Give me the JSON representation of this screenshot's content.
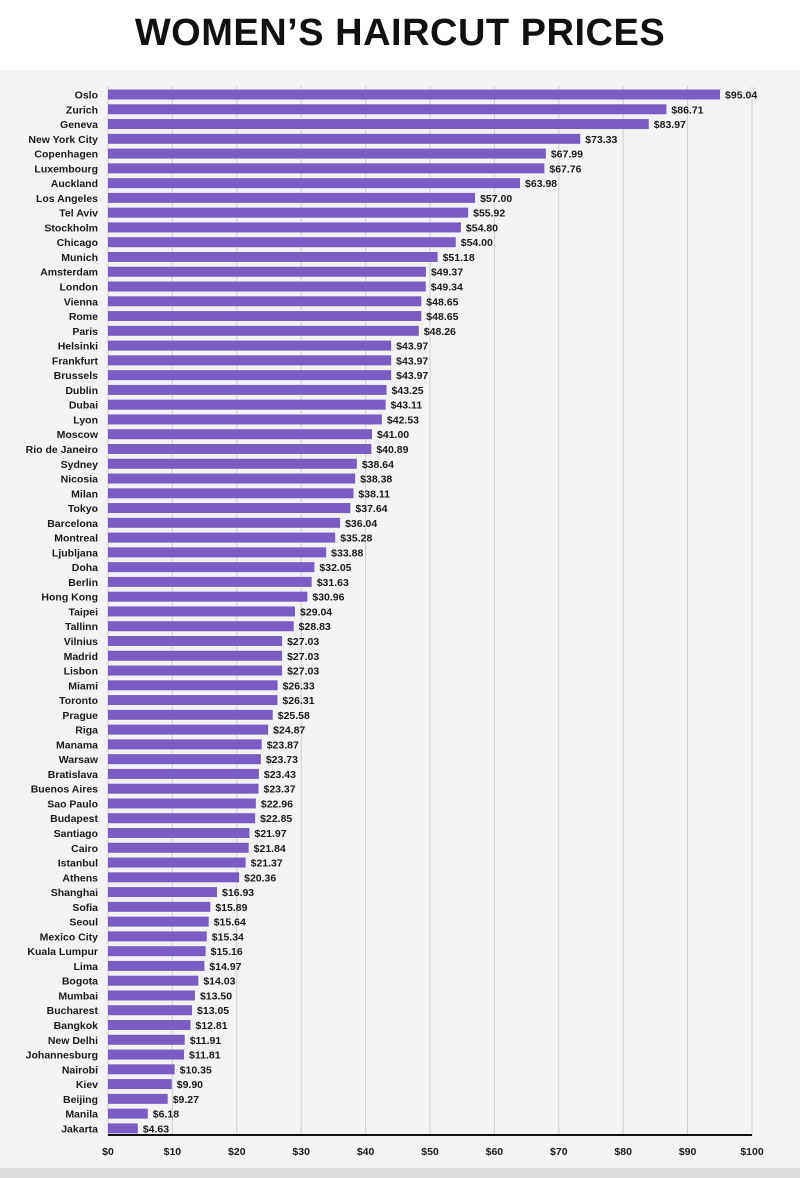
{
  "title": "WOMEN’S HAIRCUT PRICES",
  "chart_data": {
    "type": "bar",
    "orientation": "horizontal",
    "title": "WOMEN’S HAIRCUT PRICES",
    "xlabel": "",
    "ylabel": "",
    "xlim": [
      0,
      100
    ],
    "x_ticks": [
      "$0",
      "$10",
      "$20",
      "$30",
      "$40",
      "$50",
      "$60",
      "$70",
      "$80",
      "$90",
      "$100"
    ],
    "grid": "vertical",
    "bar_color": "#7b5cc4",
    "value_prefix": "$",
    "categories": [
      "Oslo",
      "Zurich",
      "Geneva",
      "New York City",
      "Copenhagen",
      "Luxembourg",
      "Auckland",
      "Los Angeles",
      "Tel Aviv",
      "Stockholm",
      "Chicago",
      "Munich",
      "Amsterdam",
      "London",
      "Vienna",
      "Rome",
      "Paris",
      "Helsinki",
      "Frankfurt",
      "Brussels",
      "Dublin",
      "Dubai",
      "Lyon",
      "Moscow",
      "Rio de Janeiro",
      "Sydney",
      "Nicosia",
      "Milan",
      "Tokyo",
      "Barcelona",
      "Montreal",
      "Ljubljana",
      "Doha",
      "Berlin",
      "Hong Kong",
      "Taipei",
      "Tallinn",
      "Vilnius",
      "Madrid",
      "Lisbon",
      "Miami",
      "Toronto",
      "Prague",
      "Riga",
      "Manama",
      "Warsaw",
      "Bratislava",
      "Buenos Aires",
      "Sao Paulo",
      "Budapest",
      "Santiago",
      "Cairo",
      "Istanbul",
      "Athens",
      "Shanghai",
      "Sofia",
      "Seoul",
      "Mexico City",
      "Kuala Lumpur",
      "Lima",
      "Bogota",
      "Mumbai",
      "Bucharest",
      "Bangkok",
      "New Delhi",
      "Johannesburg",
      "Nairobi",
      "Kiev",
      "Beijing",
      "Manila",
      "Jakarta"
    ],
    "values": [
      95.04,
      86.71,
      83.97,
      73.33,
      67.99,
      67.76,
      63.98,
      57.0,
      55.92,
      54.8,
      54.0,
      51.18,
      49.37,
      49.34,
      48.65,
      48.65,
      48.26,
      43.97,
      43.97,
      43.97,
      43.25,
      43.11,
      42.53,
      41.0,
      40.89,
      38.64,
      38.38,
      38.11,
      37.64,
      36.04,
      35.28,
      33.88,
      32.05,
      31.63,
      30.96,
      29.04,
      28.83,
      27.03,
      27.03,
      27.03,
      26.33,
      26.31,
      25.58,
      24.87,
      23.87,
      23.73,
      23.43,
      23.37,
      22.96,
      22.85,
      21.97,
      21.84,
      21.37,
      20.36,
      16.93,
      15.89,
      15.64,
      15.34,
      15.16,
      14.97,
      14.03,
      13.5,
      13.05,
      12.81,
      11.91,
      11.81,
      10.35,
      9.9,
      9.27,
      6.18,
      4.63
    ],
    "value_labels": [
      "$95.04",
      "$86.71",
      "$83.97",
      "$73.33",
      "$67.99",
      "$67.76",
      "$63.98",
      "$57.00",
      "$55.92",
      "$54.80",
      "$54.00",
      "$51.18",
      "$49.37",
      "$49.34",
      "$48.65",
      "$48.65",
      "$48.26",
      "$43.97",
      "$43.97",
      "$43.97",
      "$43.25",
      "$43.11",
      "$42.53",
      "$41.00",
      "$40.89",
      "$38.64",
      "$38.38",
      "$38.11",
      "$37.64",
      "$36.04",
      "$35.28",
      "$33.88",
      "$32.05",
      "$31.63",
      "$30.96",
      "$29.04",
      "$28.83",
      "$27.03",
      "$27.03",
      "$27.03",
      "$26.33",
      "$26.31",
      "$25.58",
      "$24.87",
      "$23.87",
      "$23.73",
      "$23.43",
      "$23.37",
      "$22.96",
      "$22.85",
      "$21.97",
      "$21.84",
      "$21.37",
      "$20.36",
      "$16.93",
      "$15.89",
      "$15.64",
      "$15.34",
      "$15.16",
      "$14.97",
      "$14.03",
      "$13.50",
      "$13.05",
      "$12.81",
      "$11.91",
      "$11.81",
      "$10.35",
      "$9.90",
      "$9.27",
      "$6.18",
      "$4.63"
    ]
  }
}
